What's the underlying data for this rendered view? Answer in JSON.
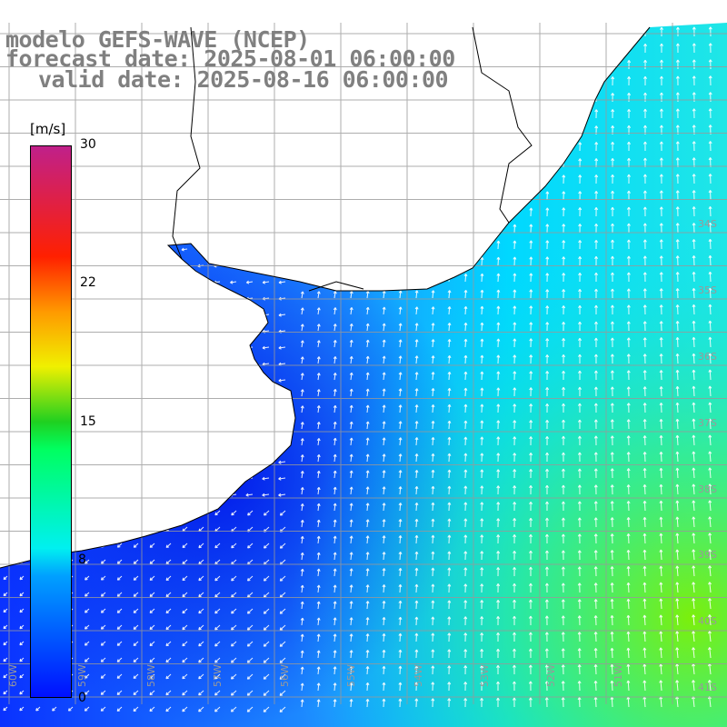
{
  "title": {
    "line1": "modelo GEFS-WAVE (NCEP)",
    "line2": "forecast date: 2025-08-01 06:00:00",
    "line3": "valid date: 2025-08-16 06:00:00"
  },
  "colorbar": {
    "unit": "[m/s]",
    "ticks": [
      "30",
      "22",
      "15",
      "8",
      "0"
    ]
  },
  "lat_labels": [
    "34S",
    "35S",
    "36S",
    "37S",
    "38S",
    "39S",
    "40S",
    "41S"
  ],
  "lon_labels": [
    "60W",
    "59W",
    "58W",
    "57W",
    "56W",
    "55W",
    "54W",
    "53W",
    "52W",
    "51W"
  ]
}
